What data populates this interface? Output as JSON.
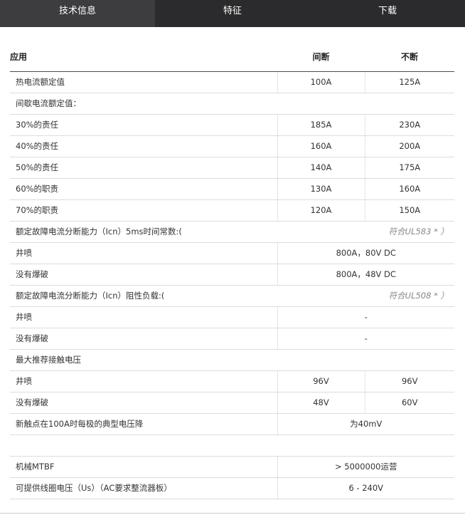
{
  "tabs": [
    {
      "label": "技术信息",
      "active": true
    },
    {
      "label": "特征"
    },
    {
      "label": "下载"
    }
  ],
  "table": {
    "headers": [
      "应用",
      "间断",
      "不断"
    ],
    "rows": [
      {
        "type": "row",
        "label": "热电流额定值",
        "values": [
          "100A",
          "125A"
        ]
      },
      {
        "type": "section",
        "label": "间歇电流额定值："
      },
      {
        "type": "row",
        "label": "30%的责任",
        "values": [
          "185A",
          "230A"
        ]
      },
      {
        "type": "row",
        "label": "40%的责任",
        "values": [
          "160A",
          "200A"
        ]
      },
      {
        "type": "row",
        "label": "50%的责任",
        "values": [
          "140A",
          "175A"
        ]
      },
      {
        "type": "row",
        "label": "60%的职责",
        "values": [
          "130A",
          "160A"
        ]
      },
      {
        "type": "row",
        "label": "70%的职责",
        "values": [
          "120A",
          "150A"
        ]
      },
      {
        "type": "section",
        "label": "额定故障电流分断能力（Icn）5ms时间常数:(",
        "note": "符合UL583 * ）"
      },
      {
        "type": "span",
        "label": "井喷",
        "value": "800A，80V DC"
      },
      {
        "type": "span",
        "label": "没有爆破",
        "value": "800A，48V DC"
      },
      {
        "type": "section",
        "label": "额定故障电流分断能力（Icn）阻性负载:(",
        "note": "符合UL508 * ）"
      },
      {
        "type": "span",
        "label": "井喷",
        "value": "-"
      },
      {
        "type": "span",
        "label": "没有爆破",
        "value": "-"
      },
      {
        "type": "section",
        "label": "最大推荐接触电压"
      },
      {
        "type": "row",
        "label": "井喷",
        "values": [
          "96V",
          "96V"
        ]
      },
      {
        "type": "row",
        "label": "没有爆破",
        "values": [
          "48V",
          "60V"
        ]
      },
      {
        "type": "span",
        "label": "新触点在100A时每极的典型电压降",
        "value": "为40mV"
      },
      {
        "type": "section",
        "label": ""
      },
      {
        "type": "span",
        "label": "机械MTBF",
        "value": "> 5000000运营"
      },
      {
        "type": "span",
        "label": "可提供线圈电压（Us）（AC要求整流器板）",
        "value": "6 - 240V"
      }
    ]
  }
}
